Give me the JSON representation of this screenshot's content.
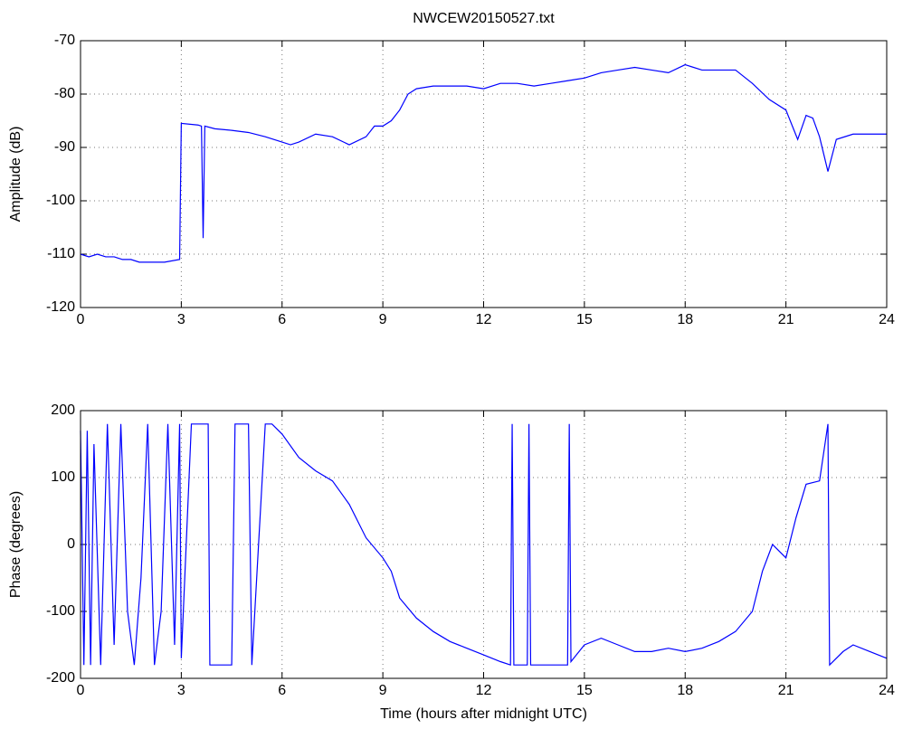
{
  "chart_data": [
    {
      "type": "line",
      "title": "NWCEW20150527.txt",
      "ylabel": "Amplitude (dB)",
      "x": [
        0,
        0.25,
        0.5,
        0.75,
        1,
        1.25,
        1.5,
        1.75,
        2,
        2.5,
        2.95,
        3,
        3.5,
        3.6,
        3.65,
        3.7,
        4,
        4.5,
        5,
        5.5,
        6,
        6.25,
        6.5,
        7,
        7.5,
        8,
        8.5,
        8.75,
        9,
        9.25,
        9.5,
        9.75,
        10,
        10.5,
        11,
        11.5,
        12,
        12.5,
        13,
        13.5,
        14,
        14.5,
        15,
        15.5,
        16,
        16.5,
        17,
        17.5,
        18,
        18.5,
        19,
        19.5,
        20,
        20.5,
        21,
        21.35,
        21.6,
        21.8,
        22,
        22.25,
        22.5,
        23,
        23.5,
        24
      ],
      "series": [
        {
          "name": "Amplitude",
          "color": "#0000ff",
          "values": [
            -110,
            -110.5,
            -110,
            -110.5,
            -110.5,
            -111,
            -111,
            -111.5,
            -111.5,
            -111.5,
            -111,
            -85.5,
            -85.8,
            -86,
            -107,
            -86,
            -86.5,
            -86.8,
            -87.2,
            -88,
            -89,
            -89.5,
            -89,
            -87.5,
            -88,
            -89.5,
            -88,
            -86,
            -86,
            -85,
            -83,
            -80,
            -79,
            -78.5,
            -78.5,
            -78.5,
            -79,
            -78,
            -78,
            -78.5,
            -78,
            -77.5,
            -77,
            -76,
            -75.5,
            -75,
            -75.5,
            -76,
            -74.5,
            -75.5,
            -75.5,
            -75.5,
            -78,
            -81,
            -83,
            -88.5,
            -84,
            -84.5,
            -88,
            -94.5,
            -88.5,
            -87.5,
            -87.5,
            -87.5
          ]
        }
      ],
      "xlim": [
        0,
        24
      ],
      "ylim": [
        -120,
        -70
      ],
      "xticks": [
        0,
        3,
        6,
        9,
        12,
        15,
        18,
        21,
        24
      ],
      "yticks": [
        -120,
        -110,
        -100,
        -90,
        -80,
        -70
      ],
      "grid": true
    },
    {
      "type": "line",
      "ylabel": "Phase (degrees)",
      "xlabel": "Time (hours after midnight UTC)",
      "x": [
        0,
        0.1,
        0.2,
        0.3,
        0.4,
        0.6,
        0.8,
        1,
        1.2,
        1.4,
        1.6,
        1.8,
        2,
        2.2,
        2.4,
        2.6,
        2.8,
        2.95,
        3,
        3.3,
        3.8,
        3.85,
        4.5,
        4.6,
        5,
        5.1,
        5.5,
        5.7,
        6,
        6.5,
        7,
        7.5,
        8,
        8.5,
        9,
        9.25,
        9.5,
        10,
        10.5,
        11,
        11.5,
        12,
        12.5,
        12.8,
        12.85,
        12.9,
        13.3,
        13.35,
        13.4,
        14.5,
        14.55,
        14.6,
        15,
        15.5,
        16,
        16.5,
        17,
        17.5,
        18,
        18.5,
        19,
        19.5,
        20,
        20.3,
        20.6,
        21,
        21.3,
        21.6,
        22,
        22.25,
        22.3,
        22.7,
        23,
        23.5,
        24
      ],
      "series": [
        {
          "name": "Phase",
          "color": "#0000ff",
          "values": [
            170,
            -180,
            170,
            -180,
            150,
            -180,
            180,
            -150,
            180,
            -100,
            -180,
            -50,
            180,
            -180,
            -100,
            180,
            -150,
            180,
            -170,
            180,
            180,
            -180,
            -180,
            180,
            180,
            -180,
            180,
            180,
            165,
            130,
            110,
            95,
            60,
            10,
            -20,
            -40,
            -80,
            -110,
            -130,
            -145,
            -155,
            -165,
            -175,
            -180,
            180,
            -180,
            -180,
            180,
            -180,
            -180,
            180,
            -175,
            -150,
            -140,
            -150,
            -160,
            -160,
            -155,
            -160,
            -155,
            -145,
            -130,
            -100,
            -40,
            0,
            -20,
            40,
            90,
            95,
            180,
            -180,
            -160,
            -150,
            -160,
            -170
          ]
        }
      ],
      "xlim": [
        0,
        24
      ],
      "ylim": [
        -200,
        200
      ],
      "xticks": [
        0,
        3,
        6,
        9,
        12,
        15,
        18,
        21,
        24
      ],
      "yticks": [
        -200,
        -100,
        0,
        100,
        200
      ],
      "grid": true
    }
  ]
}
